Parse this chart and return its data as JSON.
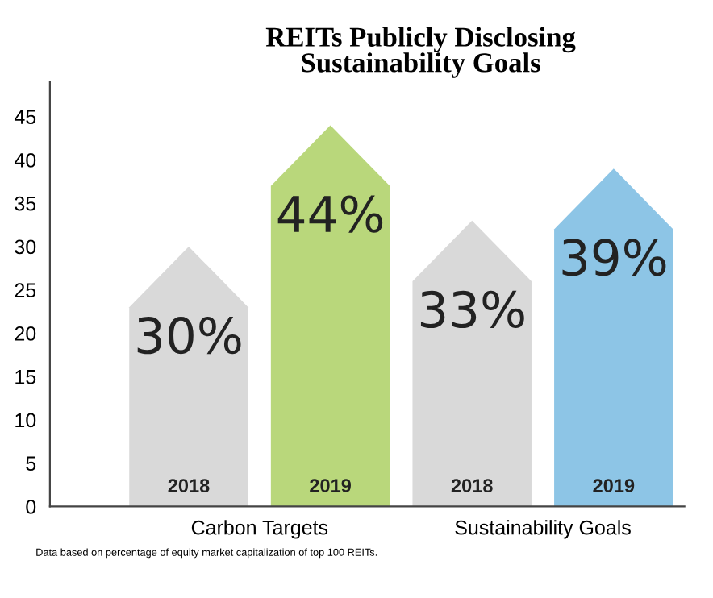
{
  "chart_data": {
    "type": "bar",
    "title": "REITs Publicly Disclosing\nSustainability Goals",
    "categories": [
      "Carbon Targets",
      "Sustainability Goals"
    ],
    "series": [
      {
        "name": "2018",
        "colors": [
          "#d9d9d9",
          "#d9d9d9"
        ],
        "values": [
          30,
          33
        ],
        "value_labels": [
          "30%",
          "33%"
        ]
      },
      {
        "name": "2019",
        "colors": [
          "#b9d77b",
          "#8dc5e6"
        ],
        "values": [
          44,
          39
        ],
        "value_labels": [
          "44%",
          "39%"
        ]
      }
    ],
    "ylim": [
      0,
      49
    ],
    "yticks": [
      0,
      5,
      10,
      15,
      20,
      25,
      30,
      35,
      40,
      45
    ],
    "grid": false,
    "legend": false,
    "annotations": [
      "Data based on percentage of equity market capitalization of top 100 REITs."
    ]
  }
}
